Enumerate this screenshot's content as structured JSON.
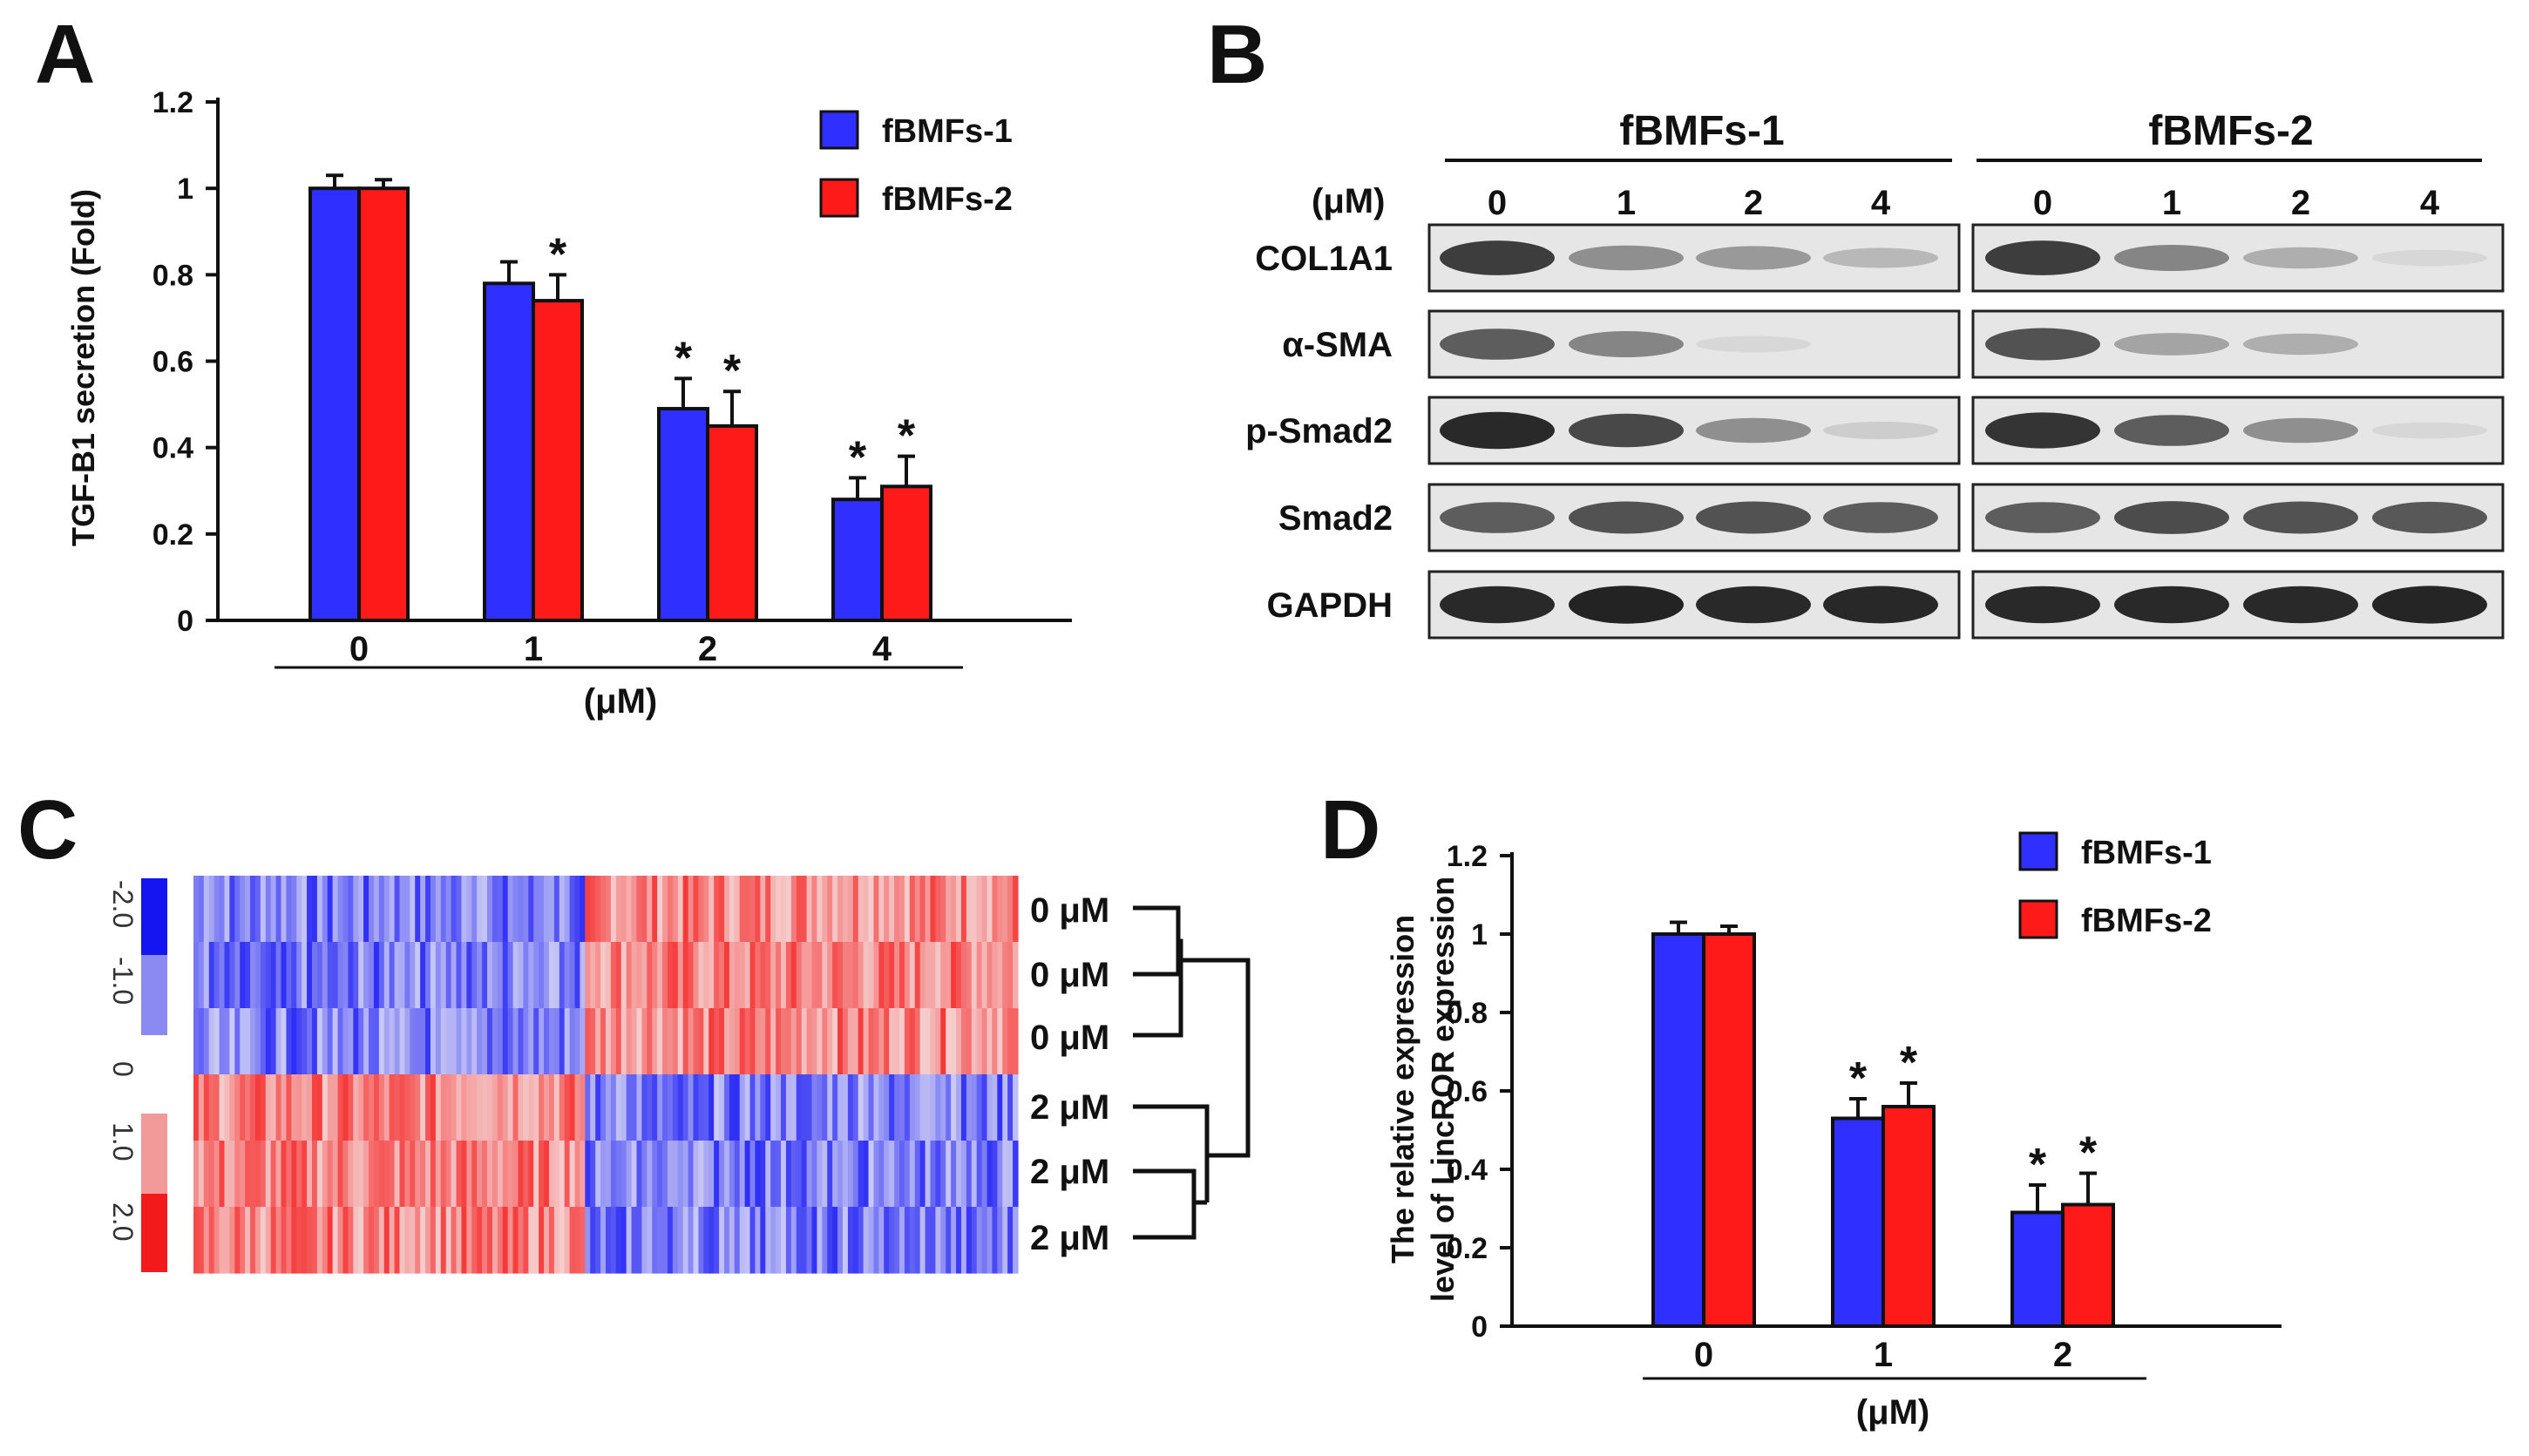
{
  "panels": {
    "a": {
      "letter": "A"
    },
    "b": {
      "letter": "B"
    },
    "c": {
      "letter": "C"
    },
    "d": {
      "letter": "D"
    }
  },
  "colors": {
    "series1": "#2f2fff",
    "series2": "#ff1a1a",
    "axis": "#111111"
  },
  "chart_data": [
    {
      "id": "A",
      "type": "bar",
      "title": "",
      "ylabel": "TGF-B1  secretion (Fold)",
      "xlabel": "(μM)",
      "categories": [
        "0",
        "1",
        "2",
        "4"
      ],
      "ylim": [
        0,
        1.2
      ],
      "yticks": [
        "0",
        "0.2",
        "0.4",
        "0.6",
        "0.8",
        "1",
        "1.2"
      ],
      "series": [
        {
          "name": "fBMFs-1",
          "values": [
            1.0,
            0.78,
            0.49,
            0.28
          ],
          "errors": [
            0.03,
            0.05,
            0.07,
            0.05
          ]
        },
        {
          "name": "fBMFs-2",
          "values": [
            1.0,
            0.74,
            0.45,
            0.31
          ],
          "errors": [
            0.02,
            0.06,
            0.08,
            0.07
          ]
        }
      ],
      "significance": [
        [
          false,
          false,
          true,
          true
        ],
        [
          false,
          true,
          true,
          true
        ]
      ],
      "significance_marker": "*"
    },
    {
      "id": "D",
      "type": "bar",
      "title": "",
      "ylabel_line1": "The relative expression",
      "ylabel_line2": "level of LincROR expression",
      "xlabel": "(μM)",
      "categories": [
        "0",
        "1",
        "2"
      ],
      "ylim": [
        0,
        1.2
      ],
      "yticks": [
        "0",
        "0.2",
        "0.4",
        "0.6",
        "0.8",
        "1",
        "1.2"
      ],
      "series": [
        {
          "name": "fBMFs-1",
          "values": [
            1.0,
            0.53,
            0.29
          ],
          "errors": [
            0.03,
            0.05,
            0.07
          ]
        },
        {
          "name": "fBMFs-2",
          "values": [
            1.0,
            0.56,
            0.31
          ],
          "errors": [
            0.02,
            0.06,
            0.08
          ]
        }
      ],
      "significance": [
        [
          false,
          true,
          true
        ],
        [
          false,
          true,
          true
        ]
      ],
      "significance_marker": "*"
    }
  ],
  "western": {
    "groups": [
      "fBMFs-1",
      "fBMFs-2"
    ],
    "unit": "(μM)",
    "doses": [
      "0",
      "1",
      "2",
      "4"
    ],
    "rows": [
      {
        "name": "COL1A1",
        "g1": [
          0.85,
          0.45,
          0.4,
          0.25
        ],
        "g2": [
          0.85,
          0.5,
          0.3,
          0.1
        ]
      },
      {
        "name": "α-SMA",
        "g1": [
          0.7,
          0.5,
          0.1,
          0.0
        ],
        "g2": [
          0.75,
          0.35,
          0.3,
          0.0
        ]
      },
      {
        "name": "p-Smad2",
        "g1": [
          0.95,
          0.8,
          0.45,
          0.15
        ],
        "g2": [
          0.9,
          0.7,
          0.45,
          0.1
        ]
      },
      {
        "name": "Smad2",
        "g1": [
          0.7,
          0.75,
          0.75,
          0.7
        ],
        "g2": [
          0.7,
          0.78,
          0.75,
          0.72
        ]
      },
      {
        "name": "GAPDH",
        "g1": [
          0.95,
          0.98,
          0.95,
          0.96
        ],
        "g2": [
          0.95,
          0.95,
          0.95,
          0.97
        ]
      }
    ]
  },
  "heatmap": {
    "scale_labels": [
      "-2.0",
      "-1.0",
      "0",
      "1.0",
      "2.0"
    ],
    "samples": [
      "0 μM",
      "0 μM",
      "0 μM",
      "2 μM",
      "2 μM",
      "2 μM"
    ]
  }
}
